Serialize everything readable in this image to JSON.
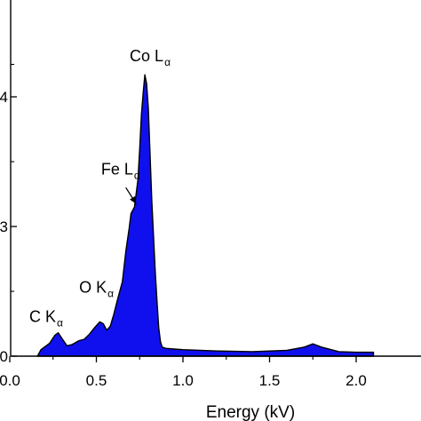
{
  "chart_data": {
    "type": "area",
    "title": "",
    "xlabel": "Energy (kV)",
    "ylabel": "",
    "xlim": [
      0.0,
      2.1
    ],
    "ylim": [
      0.0,
      4.8
    ],
    "x_ticks": [
      "0.0",
      "0.5",
      "1.0",
      "1.5",
      "2.0",
      "2"
    ],
    "y_ticks": [
      "0",
      "3",
      "4"
    ],
    "grid": false,
    "fill_color": "#1010ee",
    "series": [
      {
        "name": "",
        "x": [
          0.16,
          0.18,
          0.2,
          0.23,
          0.26,
          0.28,
          0.3,
          0.33,
          0.36,
          0.4,
          0.43,
          0.46,
          0.49,
          0.52,
          0.54,
          0.56,
          0.58,
          0.6,
          0.62,
          0.65,
          0.67,
          0.69,
          0.7,
          0.71,
          0.72,
          0.74,
          0.75,
          0.76,
          0.77,
          0.78,
          0.79,
          0.8,
          0.82,
          0.84,
          0.85,
          0.86,
          0.87,
          0.88,
          0.9,
          0.95,
          1.0,
          1.2,
          1.4,
          1.6,
          1.7,
          1.75,
          1.8,
          1.9,
          2.0,
          2.1
        ],
        "y": [
          0.0,
          0.1,
          0.14,
          0.2,
          0.32,
          0.36,
          0.28,
          0.16,
          0.18,
          0.24,
          0.26,
          0.34,
          0.44,
          0.53,
          0.5,
          0.4,
          0.46,
          0.64,
          0.85,
          1.15,
          1.62,
          1.98,
          2.2,
          2.25,
          2.3,
          2.72,
          3.2,
          3.72,
          4.06,
          4.34,
          4.2,
          3.82,
          2.4,
          1.3,
          0.84,
          0.44,
          0.22,
          0.14,
          0.12,
          0.11,
          0.1,
          0.08,
          0.07,
          0.09,
          0.14,
          0.19,
          0.14,
          0.07,
          0.06,
          0.06
        ]
      }
    ],
    "annotations": [
      {
        "main": "Co L",
        "sub": "α",
        "x": 0.79,
        "y": 4.55
      },
      {
        "main": "Fe L",
        "sub": "α",
        "x": 0.62,
        "y": 2.8
      },
      {
        "main": "O K",
        "sub": "α",
        "x": 0.48,
        "y": 0.98
      },
      {
        "main": "C K",
        "sub": "α",
        "x": 0.19,
        "y": 0.53
      }
    ],
    "arrow": {
      "from": [
        0.67,
        2.6
      ],
      "to": [
        0.73,
        2.35
      ]
    }
  }
}
